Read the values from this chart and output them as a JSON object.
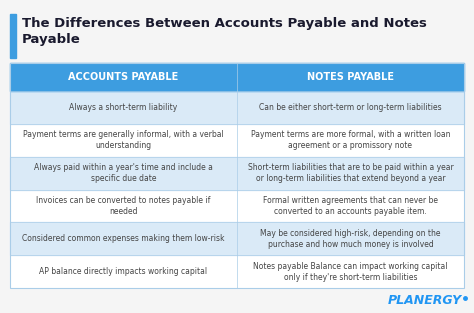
{
  "title": "The Differences Between Accounts Payable and Notes\nPayable",
  "title_color": "#1a1a2e",
  "accent_color": "#3d9de0",
  "header_bg": "#3d9de0",
  "header_text_color": "#ffffff",
  "col1_header": "ACCOUNTS PAYABLE",
  "col2_header": "NOTES PAYABLE",
  "bg_color": "#f5f5f5",
  "stripe_color": "#daeaf7",
  "white_color": "#ffffff",
  "border_color": "#aacde8",
  "logo_text": "PLANERGY",
  "logo_color": "#2196f3",
  "rows": [
    [
      "Always a short-term liability",
      "Can be either short-term or long-term liabilities"
    ],
    [
      "Payment terms are generally informal, with a verbal\nunderstanding",
      "Payment terms are more formal, with a written loan\nagreement or a promissory note"
    ],
    [
      "Always paid within a year's time and include a\nspecific due date",
      "Short-term liabilities that are to be paid within a year\nor long-term liabilities that extend beyond a year"
    ],
    [
      "Invoices can be converted to notes payable if\nneeded",
      "Formal written agreements that can never be\nconverted to an accounts payable item."
    ],
    [
      "Considered common expenses making them low-risk",
      "May be considered high-risk, depending on the\npurchase and how much money is involved"
    ],
    [
      "AP balance directly impacts working capital",
      "Notes payable Balance can impact working capital\nonly if they're short-term liabilities"
    ]
  ],
  "font_size_title": 9.5,
  "font_size_header": 7.0,
  "font_size_body": 5.5,
  "font_size_logo": 9.0
}
